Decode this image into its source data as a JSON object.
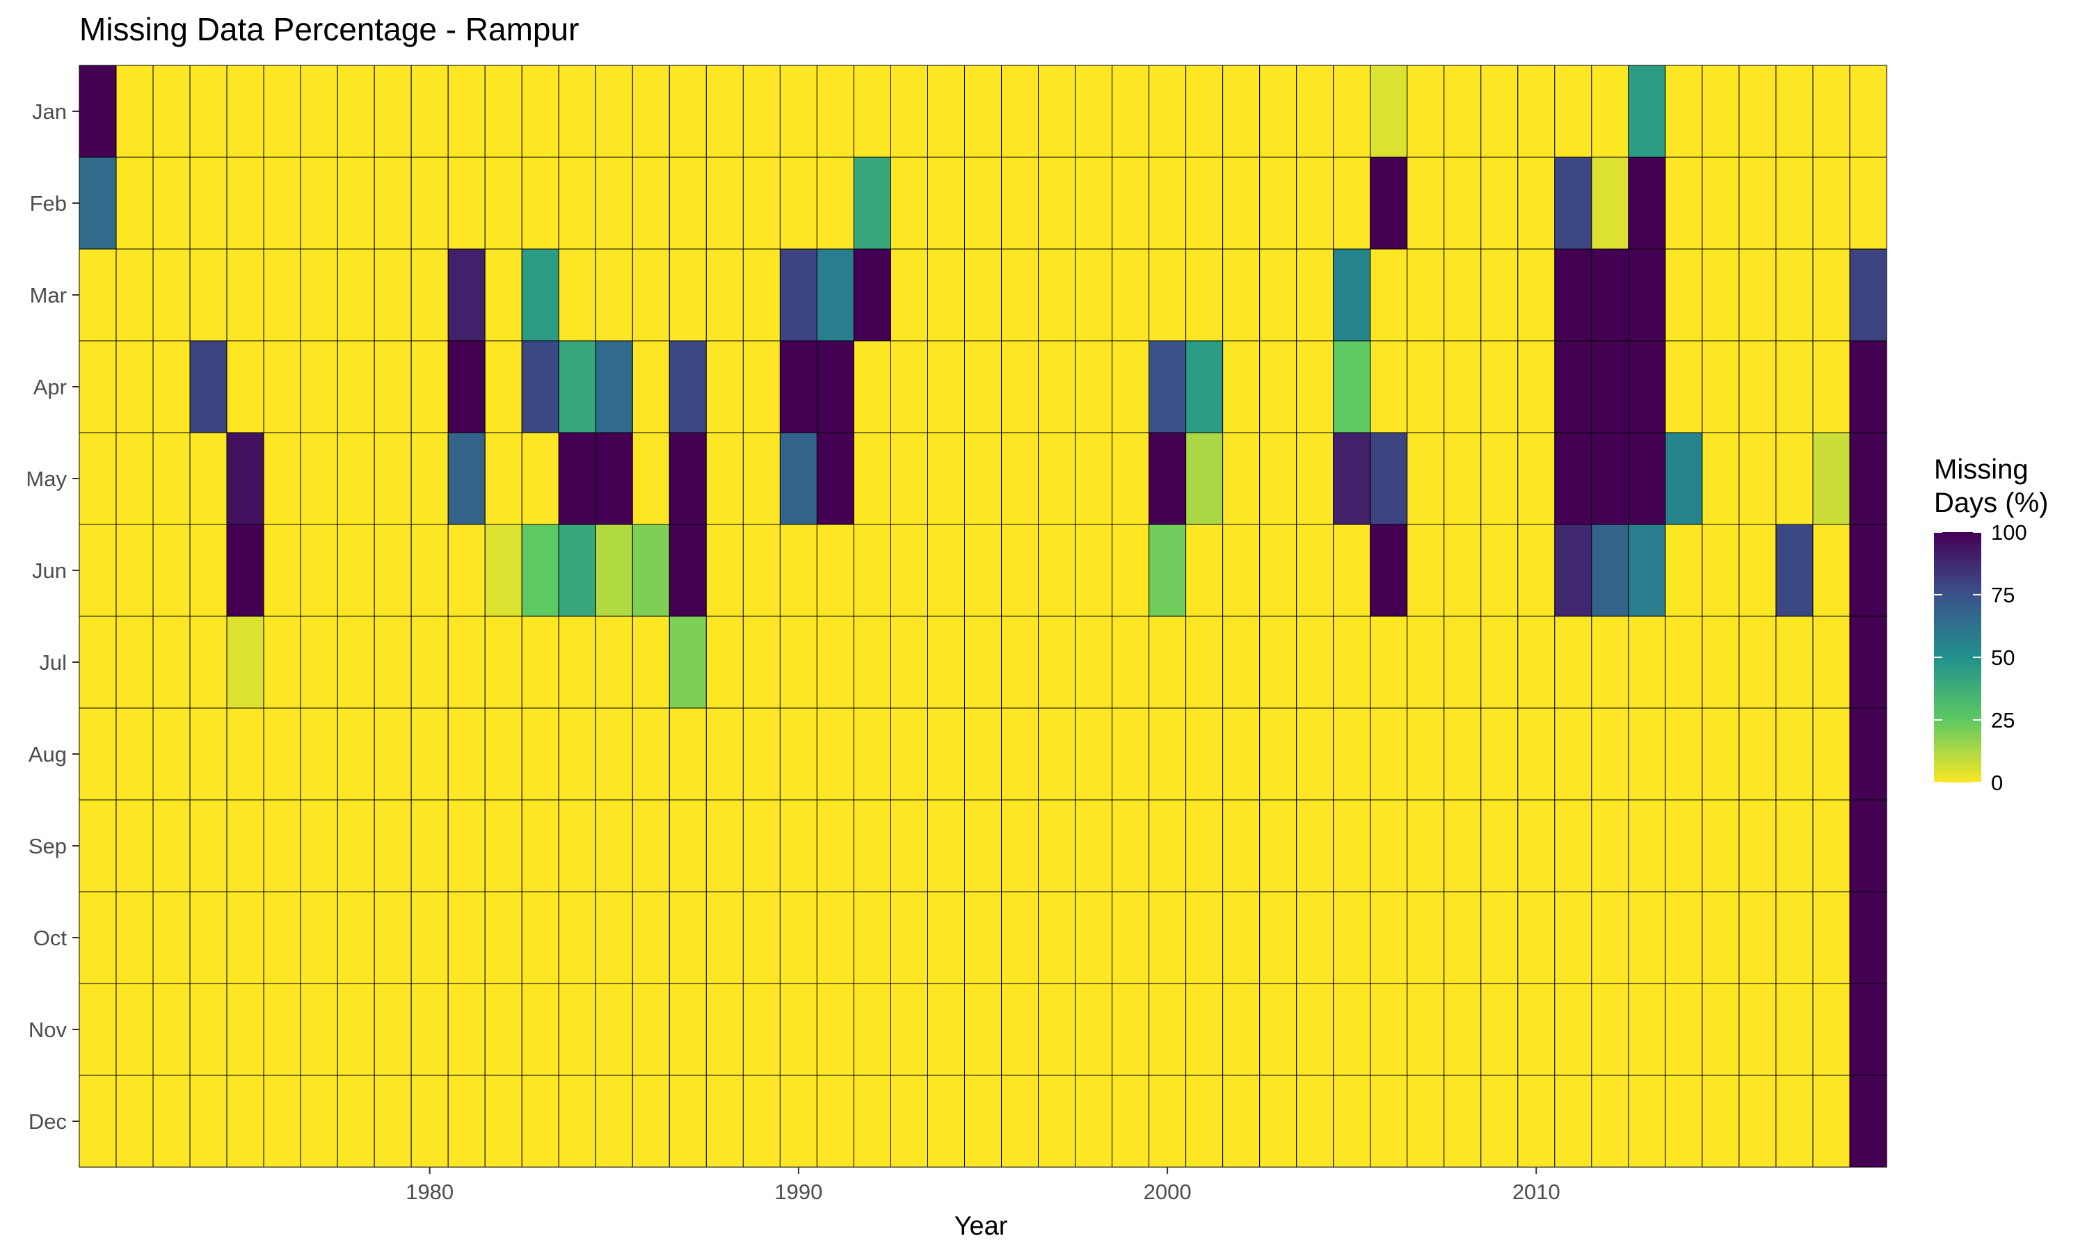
{
  "chart_data": {
    "type": "heatmap",
    "title": "Missing Data Percentage - Rampur",
    "xlabel": "Year",
    "ylabel": "",
    "x_ticks": [
      1980,
      1990,
      2000,
      2010
    ],
    "x_range": [
      1971,
      2019
    ],
    "y_categories": [
      "Jan",
      "Feb",
      "Mar",
      "Apr",
      "May",
      "Jun",
      "Jul",
      "Aug",
      "Sep",
      "Oct",
      "Nov",
      "Dec"
    ],
    "legend": {
      "title_lines": [
        "Missing",
        "Days (%)"
      ],
      "ticks": [
        100,
        75,
        50,
        25,
        0
      ],
      "range": [
        0,
        100
      ],
      "colormap": "viridis (reversed: 0 = yellow, 100 = dark purple)",
      "position": "right"
    },
    "grid": false,
    "default_value": 0,
    "cells": [
      {
        "year": 1971,
        "month": "Jan",
        "value": 100
      },
      {
        "year": 1971,
        "month": "Feb",
        "value": 65
      },
      {
        "year": 1974,
        "month": "Apr",
        "value": 80
      },
      {
        "year": 1975,
        "month": "May",
        "value": 95
      },
      {
        "year": 1975,
        "month": "Jun",
        "value": 100
      },
      {
        "year": 1975,
        "month": "Jul",
        "value": 5
      },
      {
        "year": 1981,
        "month": "Mar",
        "value": 90
      },
      {
        "year": 1981,
        "month": "Apr",
        "value": 100
      },
      {
        "year": 1981,
        "month": "May",
        "value": 68
      },
      {
        "year": 1982,
        "month": "Jun",
        "value": 5
      },
      {
        "year": 1983,
        "month": "Mar",
        "value": 45
      },
      {
        "year": 1983,
        "month": "Apr",
        "value": 78
      },
      {
        "year": 1983,
        "month": "Jun",
        "value": 25
      },
      {
        "year": 1984,
        "month": "Apr",
        "value": 40
      },
      {
        "year": 1984,
        "month": "May",
        "value": 100
      },
      {
        "year": 1984,
        "month": "Jun",
        "value": 40
      },
      {
        "year": 1985,
        "month": "Apr",
        "value": 65
      },
      {
        "year": 1985,
        "month": "May",
        "value": 100
      },
      {
        "year": 1985,
        "month": "Jun",
        "value": 12
      },
      {
        "year": 1986,
        "month": "Jun",
        "value": 20
      },
      {
        "year": 1987,
        "month": "Apr",
        "value": 78
      },
      {
        "year": 1987,
        "month": "May",
        "value": 100
      },
      {
        "year": 1987,
        "month": "Jun",
        "value": 100
      },
      {
        "year": 1987,
        "month": "Jul",
        "value": 20
      },
      {
        "year": 1990,
        "month": "Mar",
        "value": 80
      },
      {
        "year": 1990,
        "month": "Apr",
        "value": 100
      },
      {
        "year": 1990,
        "month": "May",
        "value": 68
      },
      {
        "year": 1991,
        "month": "Mar",
        "value": 58
      },
      {
        "year": 1991,
        "month": "Apr",
        "value": 100
      },
      {
        "year": 1991,
        "month": "May",
        "value": 100
      },
      {
        "year": 1992,
        "month": "Feb",
        "value": 40
      },
      {
        "year": 1992,
        "month": "Mar",
        "value": 100
      },
      {
        "year": 2000,
        "month": "Apr",
        "value": 75
      },
      {
        "year": 2000,
        "month": "May",
        "value": 100
      },
      {
        "year": 2000,
        "month": "Jun",
        "value": 22
      },
      {
        "year": 2001,
        "month": "Apr",
        "value": 45
      },
      {
        "year": 2001,
        "month": "May",
        "value": 13
      },
      {
        "year": 2005,
        "month": "Mar",
        "value": 55
      },
      {
        "year": 2005,
        "month": "Apr",
        "value": 25
      },
      {
        "year": 2005,
        "month": "May",
        "value": 90
      },
      {
        "year": 2006,
        "month": "Jan",
        "value": 5
      },
      {
        "year": 2006,
        "month": "Feb",
        "value": 100
      },
      {
        "year": 2006,
        "month": "May",
        "value": 80
      },
      {
        "year": 2006,
        "month": "Jun",
        "value": 100
      },
      {
        "year": 2011,
        "month": "Feb",
        "value": 78
      },
      {
        "year": 2011,
        "month": "Mar",
        "value": 100
      },
      {
        "year": 2011,
        "month": "Apr",
        "value": 100
      },
      {
        "year": 2011,
        "month": "May",
        "value": 100
      },
      {
        "year": 2011,
        "month": "Jun",
        "value": 88
      },
      {
        "year": 2012,
        "month": "Feb",
        "value": 5
      },
      {
        "year": 2012,
        "month": "Mar",
        "value": 100
      },
      {
        "year": 2012,
        "month": "Apr",
        "value": 100
      },
      {
        "year": 2012,
        "month": "May",
        "value": 100
      },
      {
        "year": 2012,
        "month": "Jun",
        "value": 68
      },
      {
        "year": 2013,
        "month": "Jan",
        "value": 45
      },
      {
        "year": 2013,
        "month": "Feb",
        "value": 100
      },
      {
        "year": 2013,
        "month": "Mar",
        "value": 100
      },
      {
        "year": 2013,
        "month": "Apr",
        "value": 100
      },
      {
        "year": 2013,
        "month": "May",
        "value": 100
      },
      {
        "year": 2013,
        "month": "Jun",
        "value": 58
      },
      {
        "year": 2014,
        "month": "May",
        "value": 55
      },
      {
        "year": 2017,
        "month": "Jun",
        "value": 78
      },
      {
        "year": 2018,
        "month": "May",
        "value": 8
      },
      {
        "year": 2019,
        "month": "Mar",
        "value": 80
      },
      {
        "year": 2019,
        "month": "Apr",
        "value": 100
      },
      {
        "year": 2019,
        "month": "May",
        "value": 100
      },
      {
        "year": 2019,
        "month": "Jun",
        "value": 100
      },
      {
        "year": 2019,
        "month": "Jul",
        "value": 100
      },
      {
        "year": 2019,
        "month": "Aug",
        "value": 100
      },
      {
        "year": 2019,
        "month": "Sep",
        "value": 100
      },
      {
        "year": 2019,
        "month": "Oct",
        "value": 100
      },
      {
        "year": 2019,
        "month": "Nov",
        "value": 100
      },
      {
        "year": 2019,
        "month": "Dec",
        "value": 100
      }
    ]
  }
}
